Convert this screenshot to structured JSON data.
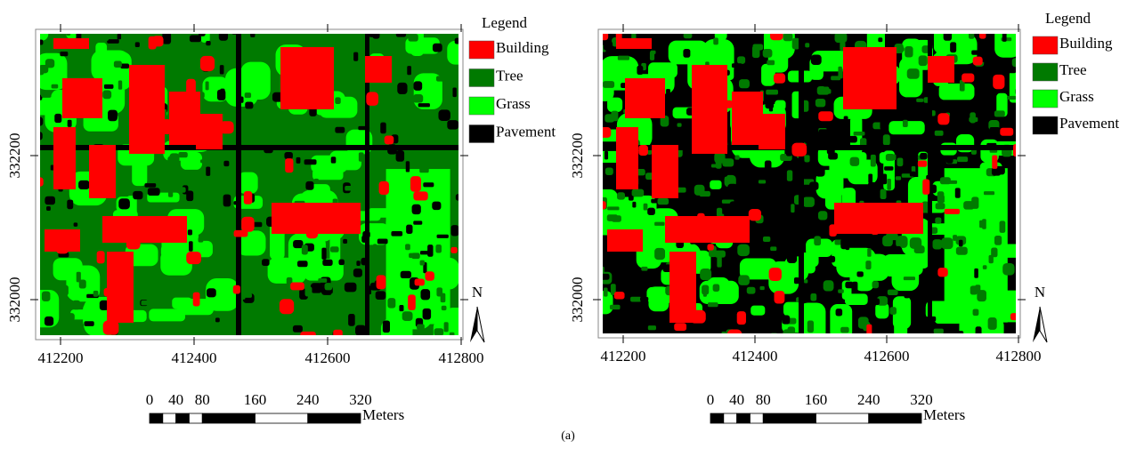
{
  "panels": [
    {
      "x_ticks": [
        412200,
        412400,
        412600,
        412800
      ],
      "y_ticks": [
        332200,
        332000
      ],
      "legend": {
        "title": "Legend",
        "items": [
          {
            "label": "Building",
            "color": "#ff0000"
          },
          {
            "label": "Tree",
            "color": "#007a00"
          },
          {
            "label": "Grass",
            "color": "#00ff00"
          },
          {
            "label": "Pavement",
            "color": "#000000"
          }
        ]
      },
      "north": "N",
      "scale": {
        "labels": [
          0,
          40,
          80,
          160,
          240,
          320
        ],
        "unit": "Meters"
      }
    },
    {
      "x_ticks": [
        412200,
        412400,
        412600,
        412800
      ],
      "y_ticks": [
        332200,
        332000
      ],
      "legend": {
        "title": "Legend",
        "items": [
          {
            "label": "Building",
            "color": "#ff0000"
          },
          {
            "label": "Tree",
            "color": "#007a00"
          },
          {
            "label": "Grass",
            "color": "#00ff00"
          },
          {
            "label": "Pavement",
            "color": "#000000"
          }
        ]
      },
      "north": "N",
      "scale": {
        "labels": [
          0,
          40,
          80,
          160,
          240,
          320
        ],
        "unit": "Meters"
      }
    }
  ],
  "caption": "(a)"
}
